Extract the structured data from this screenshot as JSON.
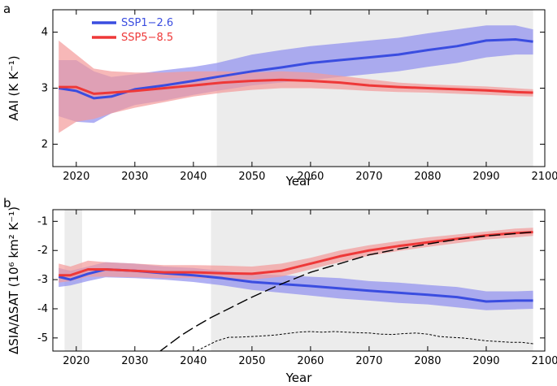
{
  "chart_data": [
    {
      "panel": "a",
      "type": "line",
      "xlabel": "Year",
      "ylabel": "AAI (K K⁻¹)",
      "xlim": [
        2016,
        2100
      ],
      "ylim": [
        1.6,
        4.4
      ],
      "xticks": [
        2020,
        2030,
        2040,
        2050,
        2060,
        2070,
        2080,
        2090,
        2100
      ],
      "yticks": [
        2,
        3,
        4
      ],
      "shaded_regions": [
        [
          2044,
          2098
        ]
      ],
      "legend": {
        "position": "top-left"
      },
      "series": [
        {
          "name": "SSP1−2.6",
          "color": "#3a4de0",
          "band_color": "#8f8ff0",
          "x": [
            2017,
            2020,
            2023,
            2026,
            2030,
            2035,
            2040,
            2044,
            2050,
            2055,
            2060,
            2065,
            2070,
            2075,
            2080,
            2085,
            2090,
            2095,
            2098
          ],
          "values": [
            3.0,
            2.95,
            2.82,
            2.85,
            2.98,
            3.05,
            3.13,
            3.2,
            3.3,
            3.37,
            3.45,
            3.5,
            3.55,
            3.6,
            3.68,
            3.75,
            3.85,
            3.87,
            3.83
          ],
          "lower": [
            2.5,
            2.4,
            2.38,
            2.55,
            2.7,
            2.78,
            2.88,
            2.95,
            3.05,
            3.1,
            3.15,
            3.2,
            3.25,
            3.3,
            3.38,
            3.45,
            3.55,
            3.6,
            3.6
          ],
          "upper": [
            3.5,
            3.5,
            3.3,
            3.2,
            3.25,
            3.32,
            3.38,
            3.45,
            3.6,
            3.68,
            3.75,
            3.8,
            3.85,
            3.9,
            3.98,
            4.05,
            4.12,
            4.12,
            4.05
          ]
        },
        {
          "name": "SSP5−8.5",
          "color": "#ee3838",
          "band_color": "#f49a9a",
          "x": [
            2017,
            2020,
            2023,
            2026,
            2030,
            2035,
            2040,
            2045,
            2050,
            2055,
            2060,
            2065,
            2070,
            2075,
            2080,
            2085,
            2090,
            2095,
            2098
          ],
          "values": [
            3.02,
            3.02,
            2.9,
            2.92,
            2.95,
            3.0,
            3.05,
            3.1,
            3.13,
            3.15,
            3.13,
            3.1,
            3.05,
            3.02,
            3.0,
            2.98,
            2.96,
            2.93,
            2.92
          ],
          "lower": [
            2.2,
            2.4,
            2.45,
            2.55,
            2.65,
            2.75,
            2.85,
            2.92,
            2.97,
            3.0,
            3.0,
            2.98,
            2.95,
            2.93,
            2.92,
            2.9,
            2.88,
            2.86,
            2.85
          ],
          "upper": [
            3.85,
            3.6,
            3.35,
            3.3,
            3.28,
            3.28,
            3.3,
            3.3,
            3.28,
            3.3,
            3.28,
            3.22,
            3.16,
            3.1,
            3.07,
            3.05,
            3.03,
            3.0,
            2.98
          ]
        }
      ]
    },
    {
      "panel": "b",
      "type": "line",
      "xlabel": "Year",
      "ylabel": "ΔSIA/ΔSAT (10⁶ km² K⁻¹)",
      "xlim": [
        2016,
        2100
      ],
      "ylim": [
        -5.45,
        -0.6
      ],
      "xticks": [
        2020,
        2030,
        2040,
        2050,
        2060,
        2070,
        2080,
        2090,
        2100
      ],
      "yticks": [
        -5,
        -4,
        -3,
        -2,
        -1
      ],
      "shaded_regions": [
        [
          2018,
          2021
        ],
        [
          2043,
          2098
        ]
      ],
      "series": [
        {
          "name": "SSP1−2.6",
          "color": "#3a4de0",
          "band_color": "#8f8ff0",
          "x": [
            2017,
            2019,
            2022,
            2025,
            2030,
            2035,
            2040,
            2045,
            2050,
            2055,
            2060,
            2065,
            2070,
            2075,
            2080,
            2085,
            2090,
            2095,
            2098
          ],
          "values": [
            -2.9,
            -3.0,
            -2.8,
            -2.65,
            -2.7,
            -2.78,
            -2.85,
            -2.95,
            -3.08,
            -3.15,
            -3.22,
            -3.3,
            -3.38,
            -3.45,
            -3.52,
            -3.6,
            -3.75,
            -3.72,
            -3.72
          ],
          "lower": [
            -3.25,
            -3.2,
            -3.05,
            -2.92,
            -2.95,
            -3.0,
            -3.08,
            -3.2,
            -3.35,
            -3.45,
            -3.55,
            -3.65,
            -3.72,
            -3.8,
            -3.85,
            -3.95,
            -4.05,
            -4.02,
            -4.0
          ],
          "upper": [
            -2.6,
            -2.7,
            -2.55,
            -2.4,
            -2.45,
            -2.55,
            -2.6,
            -2.7,
            -2.8,
            -2.85,
            -2.9,
            -2.95,
            -3.05,
            -3.1,
            -3.18,
            -3.25,
            -3.4,
            -3.4,
            -3.38
          ]
        },
        {
          "name": "SSP5−8.5",
          "color": "#ee3838",
          "band_color": "#f49a9a",
          "x": [
            2017,
            2019,
            2022,
            2025,
            2030,
            2035,
            2040,
            2045,
            2050,
            2055,
            2060,
            2065,
            2070,
            2075,
            2080,
            2085,
            2090,
            2095,
            2098
          ],
          "values": [
            -2.85,
            -2.85,
            -2.65,
            -2.65,
            -2.7,
            -2.75,
            -2.75,
            -2.78,
            -2.8,
            -2.7,
            -2.45,
            -2.2,
            -2.0,
            -1.85,
            -1.72,
            -1.6,
            -1.48,
            -1.4,
            -1.37
          ],
          "lower": [
            -3.1,
            -3.05,
            -2.9,
            -2.9,
            -2.92,
            -2.95,
            -2.95,
            -2.97,
            -3.0,
            -2.9,
            -2.65,
            -2.4,
            -2.18,
            -2.02,
            -1.88,
            -1.75,
            -1.62,
            -1.55,
            -1.5
          ],
          "upper": [
            -2.45,
            -2.55,
            -2.35,
            -2.4,
            -2.45,
            -2.5,
            -2.5,
            -2.52,
            -2.55,
            -2.45,
            -2.25,
            -2.0,
            -1.82,
            -1.68,
            -1.55,
            -1.45,
            -1.35,
            -1.25,
            -1.22
          ]
        },
        {
          "name": "dashed-projection",
          "color": "#000000",
          "style": "longdash",
          "x": [
            2034,
            2036,
            2038,
            2040,
            2043,
            2046,
            2050,
            2055,
            2060,
            2065,
            2070,
            2075,
            2080,
            2085,
            2090,
            2095,
            2098
          ],
          "values": [
            -5.5,
            -5.2,
            -4.9,
            -4.65,
            -4.3,
            -4.0,
            -3.6,
            -3.15,
            -2.75,
            -2.45,
            -2.15,
            -1.95,
            -1.78,
            -1.62,
            -1.5,
            -1.42,
            -1.37
          ]
        },
        {
          "name": "dotted-baseline",
          "color": "#000000",
          "style": "short-dash",
          "x": [
            2040,
            2042,
            2044,
            2046,
            2048,
            2050,
            2052,
            2054,
            2056,
            2058,
            2060,
            2062,
            2064,
            2066,
            2068,
            2070,
            2072,
            2074,
            2076,
            2078,
            2080,
            2082,
            2084,
            2086,
            2088,
            2090,
            2092,
            2094,
            2096,
            2098
          ],
          "values": [
            -5.5,
            -5.3,
            -5.1,
            -4.98,
            -4.97,
            -4.95,
            -4.93,
            -4.9,
            -4.85,
            -4.8,
            -4.78,
            -4.8,
            -4.78,
            -4.8,
            -4.82,
            -4.83,
            -4.87,
            -4.88,
            -4.85,
            -4.83,
            -4.87,
            -4.95,
            -4.98,
            -5.0,
            -5.05,
            -5.1,
            -5.12,
            -5.15,
            -5.15,
            -5.2
          ]
        }
      ]
    }
  ]
}
